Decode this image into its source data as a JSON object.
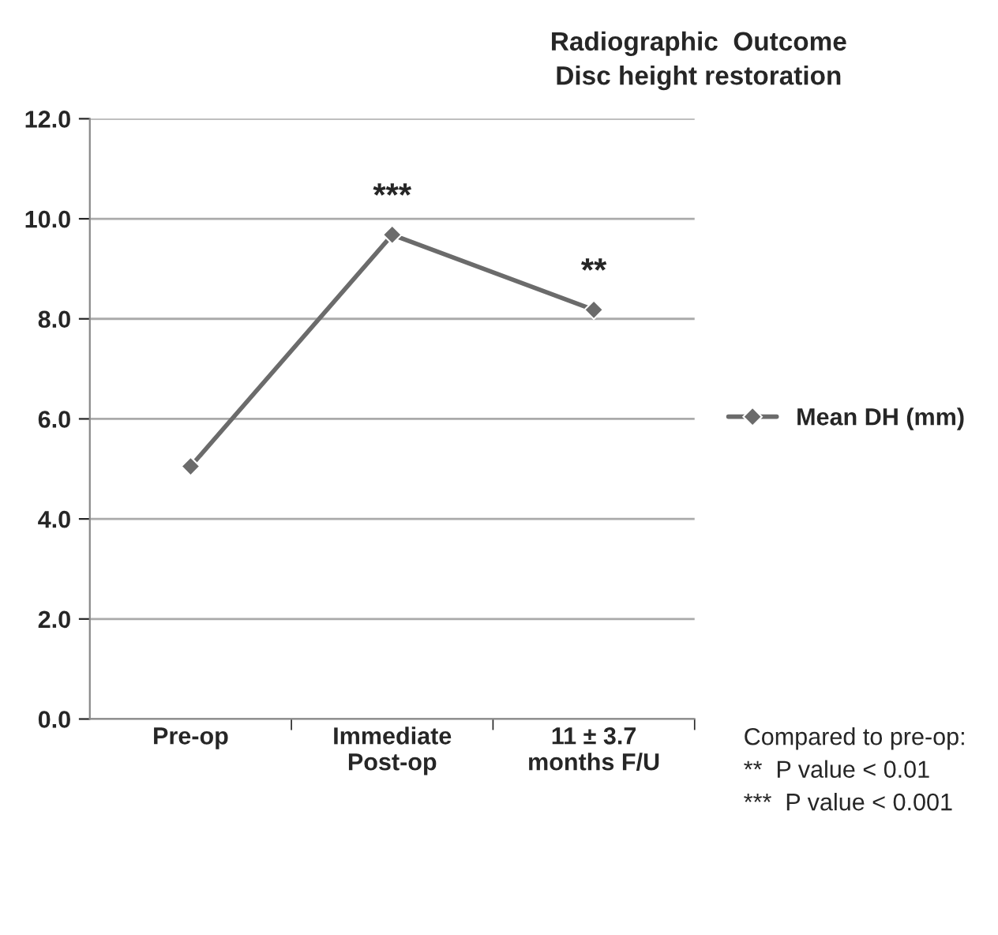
{
  "chart_data": {
    "type": "line",
    "title": "Radiographic  Outcome\nDisc height restoration",
    "categories": [
      "Pre-op",
      "Immediate\nPost-op",
      "11 ± 3.7\nmonths F/U"
    ],
    "series": [
      {
        "name": "Mean DH (mm)",
        "color": "#6b6b6b",
        "values": [
          5.05,
          9.68,
          8.18
        ]
      }
    ],
    "ylim": [
      0,
      12
    ],
    "yticks": [
      {
        "value": 0,
        "label": "0.0"
      },
      {
        "value": 2,
        "label": "2.0"
      },
      {
        "value": 4,
        "label": "4.0"
      },
      {
        "value": 6,
        "label": "6.0"
      },
      {
        "value": 8,
        "label": "8.0"
      },
      {
        "value": 10,
        "label": "10.0"
      },
      {
        "value": 12,
        "label": "12.0"
      }
    ],
    "grid": "y",
    "legend": "right",
    "marker": "diamond",
    "line_style": "solid",
    "annotations": [
      {
        "text": "***",
        "x": "Immediate\nPost-op",
        "y": 9.68
      },
      {
        "text": "**",
        "x": "11 ± 3.7\nmonths F/U",
        "y": 8.18
      },
      "Compared to pre-op:",
      "**  P value < 0.01",
      "***  P value < 0.001"
    ]
  }
}
